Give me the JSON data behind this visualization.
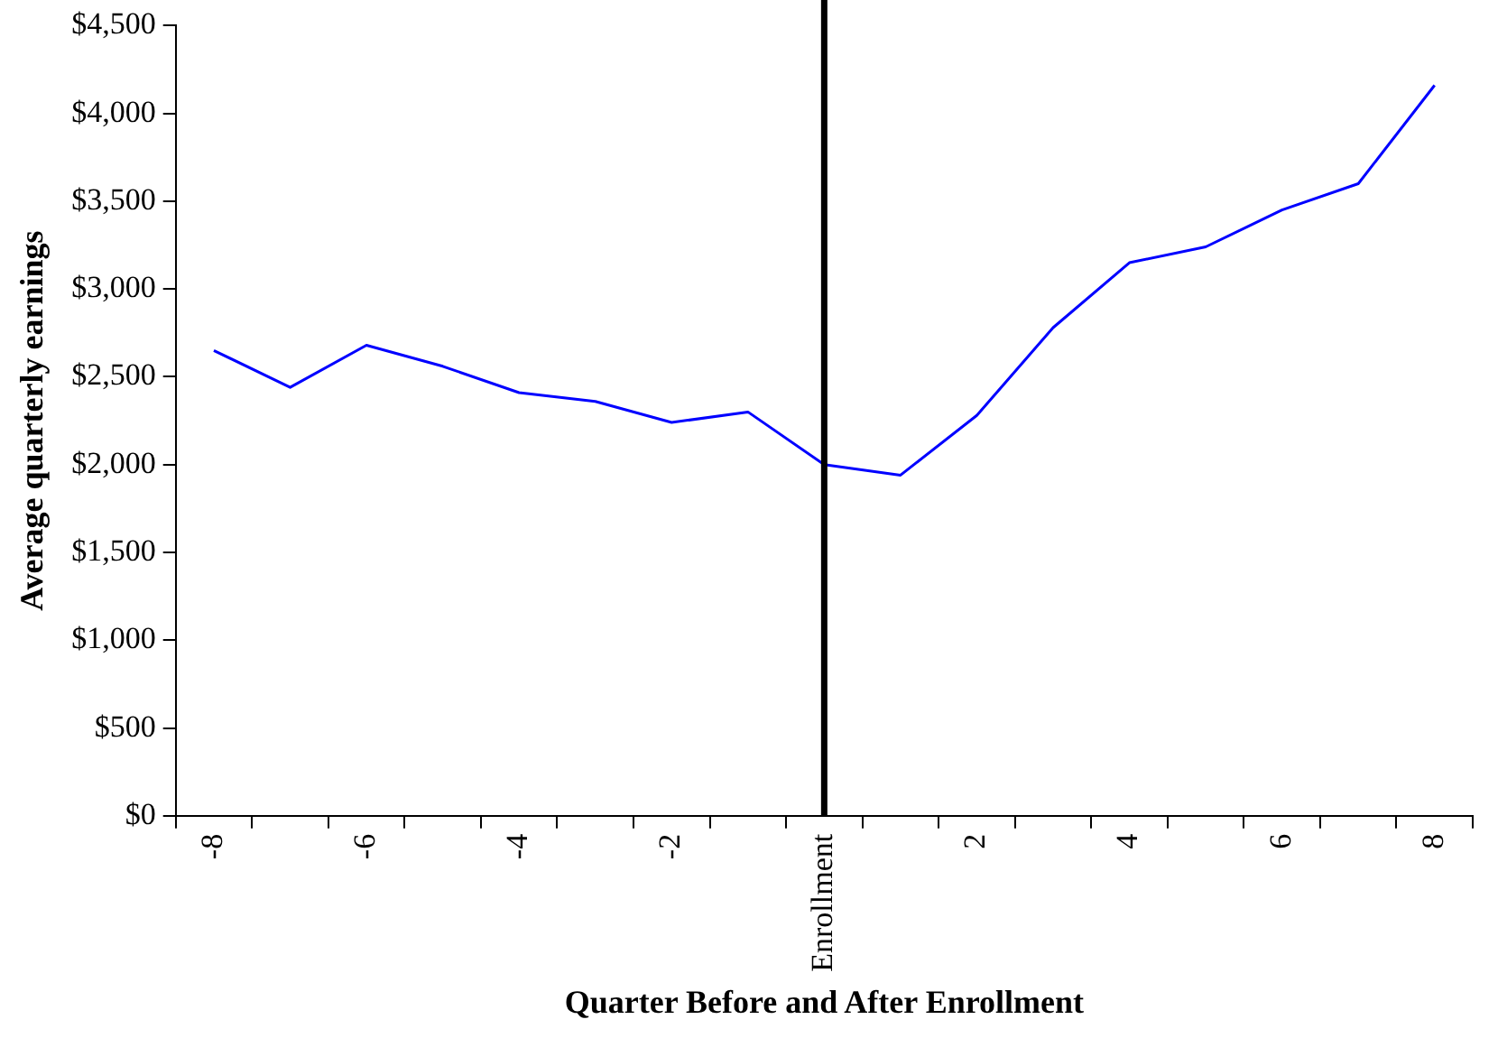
{
  "chart_data": {
    "type": "line",
    "xlabel": "Quarter Before and After Enrollment",
    "ylabel": "Average quarterly earnings",
    "categories": [
      "-8",
      null,
      "-6",
      null,
      "-4",
      null,
      "-2",
      null,
      "Enrollment",
      null,
      "2",
      null,
      "4",
      null,
      "6",
      null,
      "8"
    ],
    "series": [
      {
        "color": "#0000ff",
        "values": [
          2650,
          2440,
          2680,
          2560,
          2410,
          2360,
          2240,
          2300,
          2000,
          1940,
          2280,
          2780,
          3150,
          3240,
          3450,
          3600,
          4160
        ]
      }
    ],
    "ylim": [
      0,
      4500
    ],
    "yticks": [
      {
        "value": 0,
        "label": "$0"
      },
      {
        "value": 500,
        "label": "$500"
      },
      {
        "value": 1000,
        "label": "$1,000"
      },
      {
        "value": 1500,
        "label": "$1,500"
      },
      {
        "value": 2000,
        "label": "$2,000"
      },
      {
        "value": 2500,
        "label": "$2,500"
      },
      {
        "value": 3000,
        "label": "$3,000"
      },
      {
        "value": 3500,
        "label": "$3,500"
      },
      {
        "value": 4000,
        "label": "$4,000"
      },
      {
        "value": 4500,
        "label": "$4,500"
      }
    ],
    "ref_lines": [
      {
        "axis": "x",
        "value": "Enrollment",
        "color": "#000000"
      }
    ],
    "grid": false,
    "legend": false,
    "marker": "none",
    "line_style": "solid"
  }
}
